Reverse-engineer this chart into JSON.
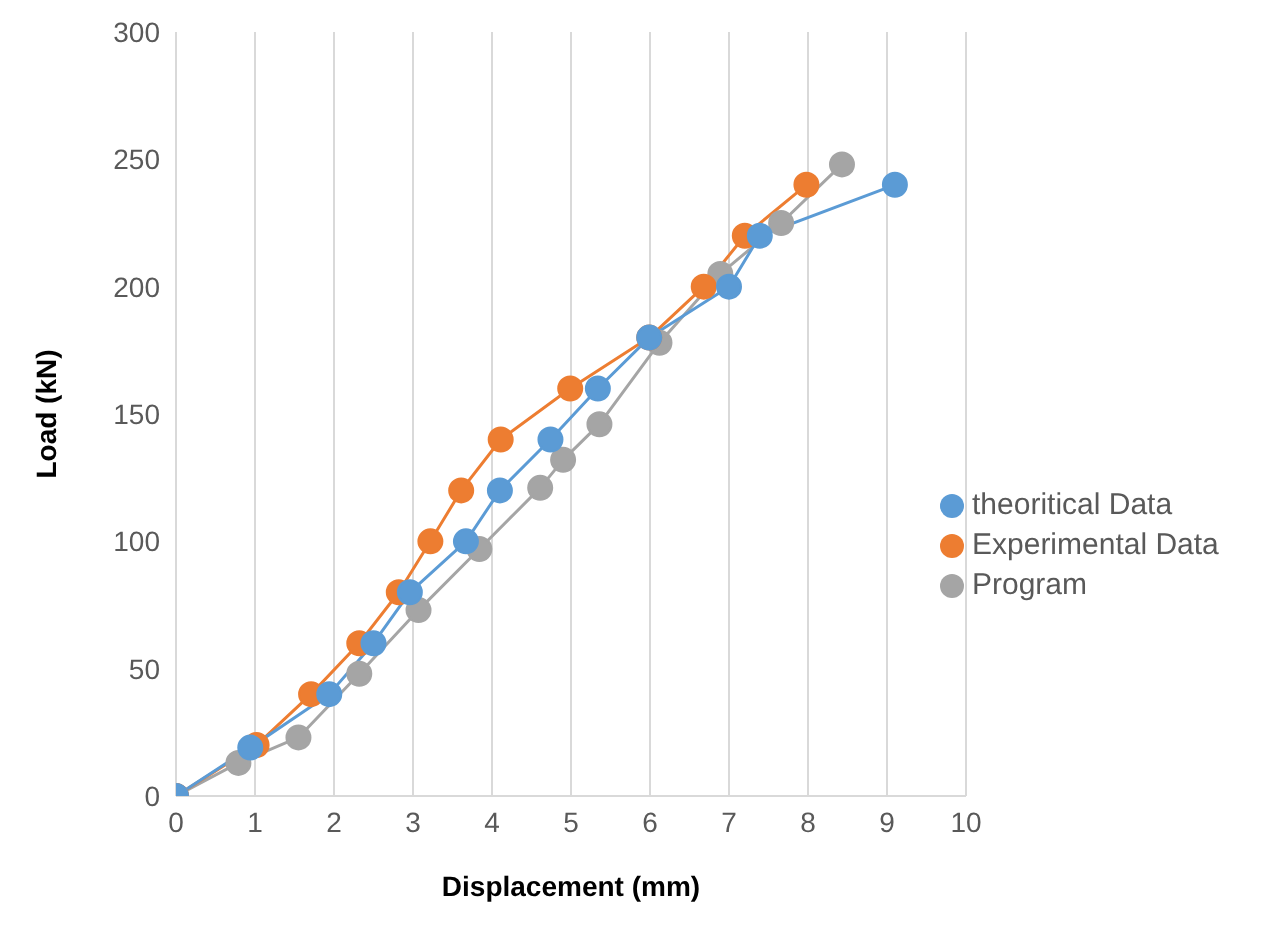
{
  "chart_data": {
    "type": "line",
    "xlabel": "Displacement (mm)",
    "ylabel": "Load (kN)",
    "xlim": [
      0,
      10
    ],
    "xticks": [
      0,
      1,
      2,
      3,
      4,
      5,
      6,
      7,
      8,
      9,
      10
    ],
    "ylim": [
      0,
      300
    ],
    "yticks": [
      0,
      50,
      100,
      150,
      200,
      250,
      300
    ],
    "grid": "x",
    "legend": "right",
    "marker": "circle",
    "line_style": "solid",
    "series": [
      {
        "name": "theoritical Data",
        "color": "#5b9bd5",
        "x": [
          0,
          0.94,
          1.94,
          2.5,
          2.96,
          3.67,
          4.1,
          4.74,
          5.34,
          5.99,
          7.0,
          7.39,
          9.1
        ],
        "values": [
          0,
          19,
          40,
          60,
          80,
          100,
          120,
          140,
          160,
          180,
          200,
          220,
          240
        ]
      },
      {
        "name": "Experimental Data",
        "color": "#ed7d31",
        "x": [
          0,
          1.02,
          1.71,
          2.32,
          2.82,
          3.22,
          3.61,
          4.11,
          4.99,
          5.99,
          6.68,
          7.2,
          7.98
        ],
        "values": [
          0,
          20,
          40,
          60,
          80,
          100,
          120,
          140,
          160,
          180,
          200,
          220,
          240
        ]
      },
      {
        "name": "Program",
        "color": "#a5a5a5",
        "x": [
          0,
          0.79,
          1.55,
          2.32,
          3.07,
          3.84,
          4.61,
          4.9,
          5.36,
          6.12,
          6.89,
          7.66,
          8.43
        ],
        "values": [
          0,
          13,
          23,
          48,
          73,
          97,
          121,
          132,
          146,
          178,
          205,
          225,
          248
        ]
      }
    ]
  }
}
